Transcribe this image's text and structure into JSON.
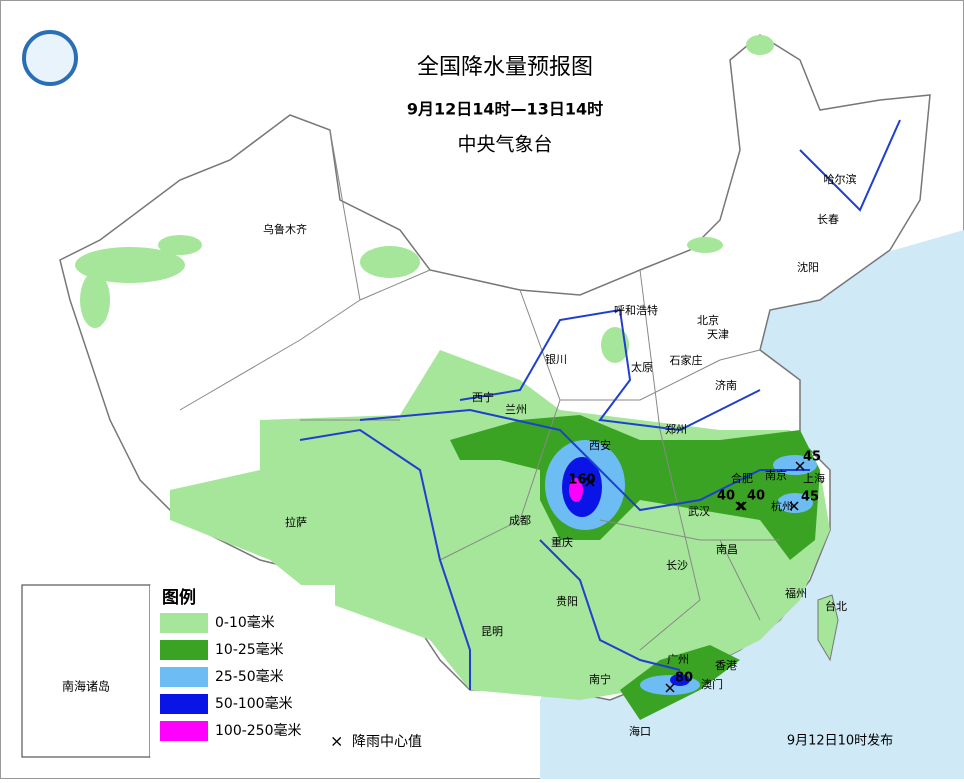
{
  "header": {
    "title": "全国降水量预报图",
    "period": "9月12日14时—13日14时",
    "issuer": "中央气象台"
  },
  "legend": {
    "title": "图例",
    "items": [
      {
        "label": "0-10毫米",
        "color": "#a6e69a"
      },
      {
        "label": "10-25毫米",
        "color": "#3aa323"
      },
      {
        "label": "25-50毫米",
        "color": "#6ebcf4"
      },
      {
        "label": "50-100毫米",
        "color": "#0a14e6"
      },
      {
        "label": "100-250毫米",
        "color": "#ff00ff"
      }
    ],
    "center_symbol": "×",
    "center_label": "降雨中心值"
  },
  "cities": [
    "乌鲁木齐",
    "哈尔滨",
    "长春",
    "沈阳",
    "呼和浩特",
    "北京",
    "天津",
    "银川",
    "石家庄",
    "太原",
    "济南",
    "西宁",
    "兰州",
    "郑州",
    "西安",
    "南京",
    "合肥",
    "上海",
    "拉萨",
    "成都",
    "武汉",
    "杭州",
    "重庆",
    "长沙",
    "南昌",
    "贵阳",
    "福州",
    "台北",
    "昆明",
    "广州",
    "香港",
    "南宁",
    "澳门",
    "海口"
  ],
  "rain_centers": [
    160,
    45,
    40,
    40,
    45,
    80
  ],
  "inset": {
    "label": "南海诸岛"
  },
  "footer": {
    "issued": "9月12日10时发布"
  }
}
